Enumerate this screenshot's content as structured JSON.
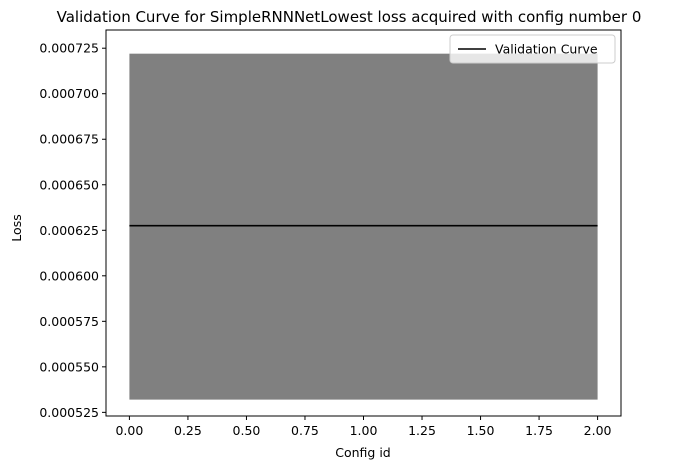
{
  "chart_data": {
    "type": "line",
    "title": "Validation Curve for SimpleRNNNetLowest loss acquired with config number 0",
    "xlabel": "Config id",
    "ylabel": "Loss",
    "xlim": [
      -0.1,
      2.1
    ],
    "ylim": [
      0.000523,
      0.000735
    ],
    "x_ticks": [
      "0.00",
      "0.25",
      "0.50",
      "0.75",
      "1.00",
      "1.25",
      "1.50",
      "1.75",
      "2.00"
    ],
    "y_ticks": [
      "0.000525",
      "0.000550",
      "0.000575",
      "0.000600",
      "0.000625",
      "0.000650",
      "0.000675",
      "0.000700",
      "0.000725"
    ],
    "grid": false,
    "legend_position": "top-right",
    "series": [
      {
        "name": "Validation Curve",
        "color": "#000000",
        "x": [
          0,
          1,
          2
        ],
        "y": [
          0.0006275,
          0.0006275,
          0.0006275
        ]
      }
    ],
    "band": {
      "color": "#808080",
      "x": [
        0,
        2
      ],
      "lower": 0.000532,
      "upper": 0.000722
    }
  }
}
